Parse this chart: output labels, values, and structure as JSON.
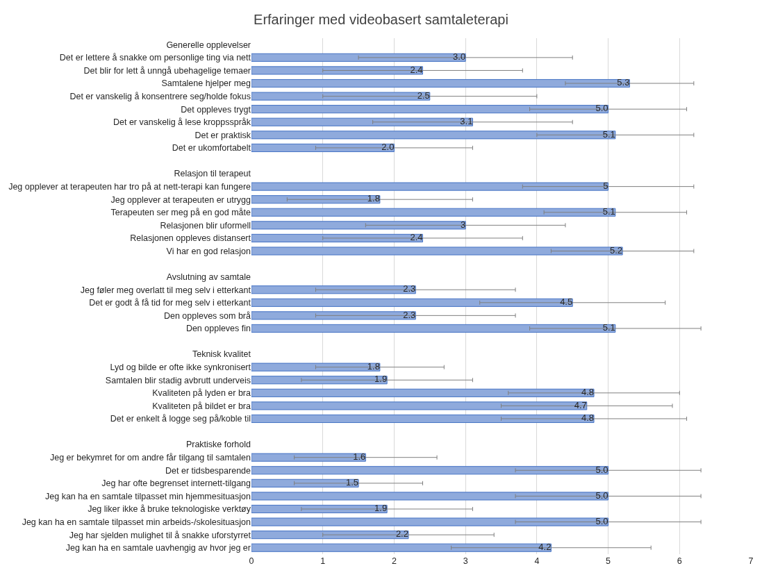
{
  "chart_data": {
    "type": "bar",
    "orientation": "horizontal",
    "title": "Erfaringer med videobasert samtaleterapi",
    "categories": [
      "Generelle opplevelser",
      "Det er lettere å snakke om personlige ting via nett",
      "Det blir for lett å unngå ubehagelige temaer",
      "Samtalene hjelper meg",
      "Det er vanskelig å konsentrere seg/holde fokus",
      "Det oppleves trygt",
      "Det er vanskelig å lese kroppsspråk",
      "Det er praktisk",
      "Det er ukomfortabelt",
      null,
      "Relasjon til terapeut",
      "Jeg opplever at terapeuten har tro på at nett-terapi kan fungere",
      "Jeg opplever at terapeuten er utrygg",
      "Terapeuten ser meg på en god måte",
      "Relasjonen blir uformell",
      "Relasjonen oppleves distansert",
      "Vi har en god relasjon",
      null,
      "Avslutning av samtale",
      "Jeg føler meg overlatt til meg selv i etterkant",
      "Det er godt å få tid for meg selv i etterkant",
      "Den oppleves som brå",
      "Den oppleves fin",
      null,
      "Teknisk kvalitet",
      "Lyd og bilde er ofte ikke synkronisert",
      "Samtalen blir stadig avbrutt underveis",
      "Kvaliteten på lyden er bra",
      "Kvaliteten på bildet er bra",
      "Det er enkelt å logge seg på/koble til",
      null,
      "Praktiske forhold",
      "Jeg er bekymret for om andre får tilgang til samtalen",
      "Det er tidsbesparende",
      "Jeg har ofte begrenset internett-tilgang",
      "Jeg kan ha en samtale tilpasset min hjemmesituasjon",
      "Jeg liker ikke å bruke teknologiske verktøy",
      "Jeg kan ha en samtale tilpasset min arbeids-/skolesituasjon",
      "Jeg har sjelden mulighet til å snakke uforstyrret",
      "Jeg kan ha en samtale uavhengig av hvor jeg er"
    ],
    "values": [
      null,
      3.0,
      2.4,
      5.3,
      2.5,
      5.0,
      3.1,
      5.1,
      2.0,
      null,
      null,
      5.0,
      1.8,
      5.1,
      3.0,
      2.4,
      5.2,
      null,
      null,
      2.3,
      4.5,
      2.3,
      5.1,
      null,
      null,
      1.8,
      1.9,
      4.8,
      4.7,
      4.8,
      null,
      null,
      1.6,
      5.0,
      1.5,
      5.0,
      1.9,
      5.0,
      2.2,
      4.2
    ],
    "value_labels": [
      null,
      "3.0",
      "2.4",
      "5.3",
      "2.5",
      "5.0",
      "3.1",
      "5.1",
      "2.0",
      null,
      null,
      "5",
      "1.8",
      "5.1",
      "3",
      "2.4",
      "5.2",
      null,
      null,
      "2.3",
      "4.5",
      "2.3",
      "5.1",
      null,
      null,
      "1.8",
      "1.9",
      "4.8",
      "4.7",
      "4.8",
      null,
      null,
      "1.6",
      "5.0",
      "1.5",
      "5.0",
      "1.9",
      "5.0",
      "2.2",
      "4.2"
    ],
    "errors": [
      null,
      1.5,
      1.4,
      0.9,
      1.5,
      1.1,
      1.4,
      1.1,
      1.1,
      null,
      null,
      1.2,
      1.3,
      1.0,
      1.4,
      1.4,
      1.0,
      null,
      null,
      1.4,
      1.3,
      1.4,
      1.2,
      null,
      null,
      0.9,
      1.2,
      1.2,
      1.2,
      1.3,
      null,
      null,
      1.0,
      1.3,
      0.9,
      1.3,
      1.2,
      1.3,
      1.2,
      1.4
    ],
    "color": "#8faadc",
    "xlim": [
      0,
      7
    ],
    "xticks": [
      0,
      1,
      2,
      3,
      4,
      5,
      6,
      7
    ],
    "grid": "x"
  }
}
